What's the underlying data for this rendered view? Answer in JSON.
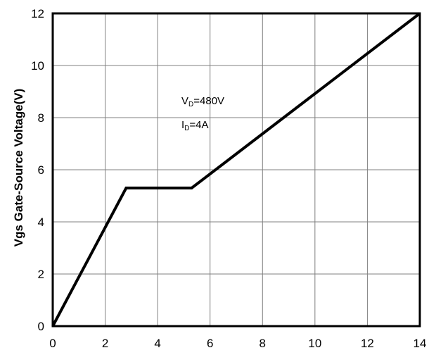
{
  "chart_data": {
    "type": "line",
    "ylabel": "Vgs Gate-Source Voltage(V)",
    "xlabel": "",
    "xlim": [
      0,
      14
    ],
    "ylim": [
      0,
      12
    ],
    "x_ticks": [
      0,
      2,
      4,
      6,
      8,
      10,
      12,
      14
    ],
    "y_ticks": [
      0,
      2,
      4,
      6,
      8,
      10,
      12
    ],
    "grid": true,
    "series": [
      {
        "x": [
          0,
          2.8,
          5.3,
          14
        ],
        "y": [
          0,
          5.3,
          5.3,
          12
        ]
      }
    ],
    "annotations": [
      {
        "main": "V",
        "sub": "D",
        "rest": "=480V"
      },
      {
        "main": "I",
        "sub": "D",
        "rest": "=4A"
      }
    ],
    "colors": {
      "line": "#000000",
      "grid": "#808080",
      "frame": "#000000"
    }
  }
}
